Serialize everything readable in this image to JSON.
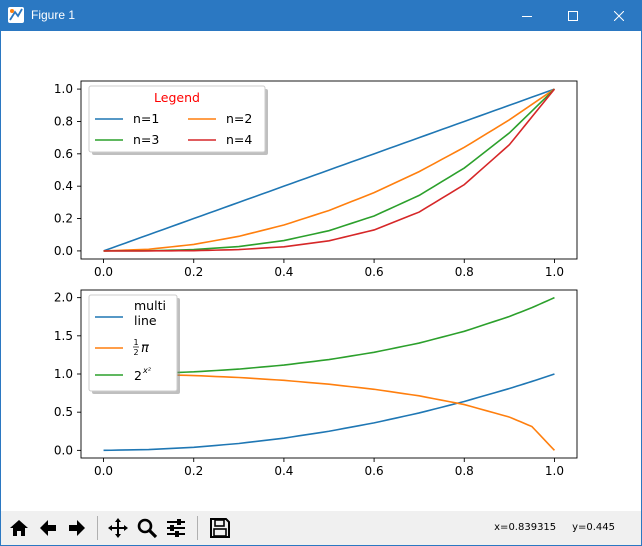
{
  "window": {
    "title": "Figure 1",
    "icon": "matplotlib-figure-icon",
    "accent": "#2b78c2"
  },
  "titlebar_buttons": [
    "minimize-icon",
    "maximize-icon",
    "close-icon"
  ],
  "toolbar": {
    "buttons": [
      "home-icon",
      "back-arrow-icon",
      "forward-arrow-icon",
      "pan-move-icon",
      "zoom-magnifier-icon",
      "configure-subplots-icon",
      "save-floppy-icon"
    ],
    "coords_x": "x=0.839315",
    "coords_y": "y=0.445"
  },
  "colors": {
    "C0": "#1f77b4",
    "C1": "#ff7f0e",
    "C2": "#2ca02c",
    "C3": "#d62728",
    "legend_title": "#ff0000"
  },
  "chart_data": [
    {
      "type": "line",
      "title": "",
      "xlabel": "",
      "ylabel": "",
      "xlim": [
        -0.05,
        1.05
      ],
      "ylim": [
        -0.05,
        1.05
      ],
      "xticks": [
        "0.0",
        "0.2",
        "0.4",
        "0.6",
        "0.8",
        "1.0"
      ],
      "yticks": [
        "0.0",
        "0.2",
        "0.4",
        "0.6",
        "0.8",
        "1.0"
      ],
      "legend": {
        "title": "Legend",
        "position": "upper left",
        "ncol": 2,
        "shadow": true
      },
      "x": [
        0.0,
        0.1,
        0.2,
        0.3,
        0.4,
        0.5,
        0.6,
        0.7,
        0.8,
        0.9,
        1.0
      ],
      "series": [
        {
          "name": "n=1",
          "color": "#1f77b4",
          "values": [
            0.0,
            0.1,
            0.2,
            0.3,
            0.4,
            0.5,
            0.6,
            0.7,
            0.8,
            0.9,
            1.0
          ]
        },
        {
          "name": "n=2",
          "color": "#ff7f0e",
          "values": [
            0.0,
            0.01,
            0.04,
            0.09,
            0.16,
            0.25,
            0.36,
            0.49,
            0.64,
            0.81,
            1.0
          ]
        },
        {
          "name": "n=3",
          "color": "#2ca02c",
          "values": [
            0.0,
            0.001,
            0.008,
            0.027,
            0.064,
            0.125,
            0.216,
            0.343,
            0.512,
            0.729,
            1.0
          ]
        },
        {
          "name": "n=4",
          "color": "#d62728",
          "values": [
            0.0,
            0.0001,
            0.0016,
            0.0081,
            0.0256,
            0.0625,
            0.1296,
            0.2401,
            0.4096,
            0.6561,
            1.0
          ]
        }
      ]
    },
    {
      "type": "line",
      "title": "",
      "xlabel": "",
      "ylabel": "",
      "xlim": [
        -0.05,
        1.05
      ],
      "ylim": [
        -0.1,
        2.1
      ],
      "xticks": [
        "0.0",
        "0.2",
        "0.4",
        "0.6",
        "0.8",
        "1.0"
      ],
      "yticks": [
        "0.0",
        "0.5",
        "1.0",
        "1.5",
        "2.0"
      ],
      "legend": {
        "position": "upper left",
        "shadow": true
      },
      "x": [
        0.0,
        0.1,
        0.2,
        0.3,
        0.4,
        0.5,
        0.6,
        0.7,
        0.8,
        0.9,
        0.95,
        1.0
      ],
      "series": [
        {
          "name": "multi\nline",
          "color": "#1f77b4",
          "values": [
            0.0,
            0.01,
            0.04,
            0.09,
            0.16,
            0.25,
            0.36,
            0.49,
            0.64,
            0.81,
            0.9025,
            1.0
          ]
        },
        {
          "name": "½π",
          "label_parts": {
            "num": "1",
            "den": "2",
            "sym": "π"
          },
          "color": "#ff7f0e",
          "values": [
            1.0,
            0.995,
            0.98,
            0.954,
            0.917,
            0.866,
            0.8,
            0.714,
            0.6,
            0.436,
            0.312,
            0.0
          ]
        },
        {
          "name": "2^x²",
          "label_parts": {
            "base": "2",
            "exp": "x²"
          },
          "color": "#2ca02c",
          "values": [
            1.0,
            1.007,
            1.028,
            1.064,
            1.117,
            1.189,
            1.284,
            1.405,
            1.559,
            1.753,
            1.869,
            2.0
          ]
        }
      ]
    }
  ]
}
